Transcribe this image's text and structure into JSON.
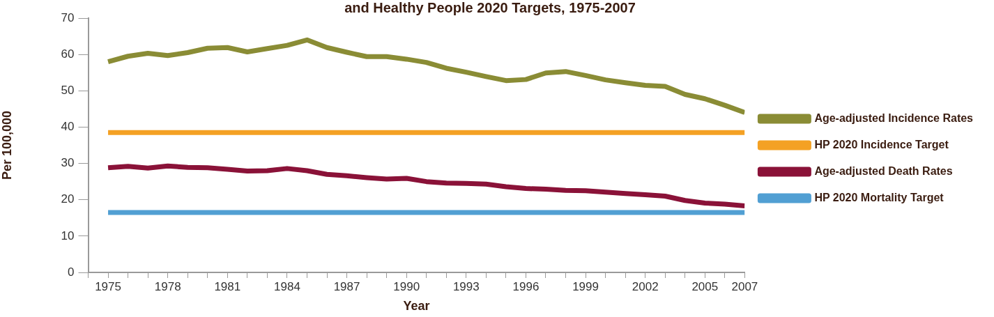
{
  "chart_data": {
    "type": "line",
    "title": "and Healthy People 2020 Targets, 1975-2007",
    "xlabel": "Year",
    "ylabel": "Per 100,000",
    "x": [
      1975,
      1976,
      1977,
      1978,
      1979,
      1980,
      1981,
      1982,
      1983,
      1984,
      1985,
      1986,
      1987,
      1988,
      1989,
      1990,
      1991,
      1992,
      1993,
      1994,
      1995,
      1996,
      1997,
      1998,
      1999,
      2000,
      2001,
      2002,
      2003,
      2004,
      2005,
      2006,
      2007
    ],
    "series": [
      {
        "name": "Age-adjusted Incidence Rates",
        "color": "#8a8c35",
        "values": [
          58,
          59.5,
          60.3,
          59.7,
          60.5,
          61.7,
          61.9,
          60.7,
          61.6,
          62.5,
          64,
          61.9,
          60.6,
          59.4,
          59.4,
          58.7,
          57.8,
          56.2,
          55.1,
          53.9,
          52.8,
          53.1,
          54.9,
          55.3,
          54.2,
          53,
          52.2,
          51.5,
          51.2,
          49,
          47.8,
          46,
          44
        ]
      },
      {
        "name": "HP 2020 Incidence Target",
        "color": "#f4a124",
        "values": [
          38.5,
          38.5,
          38.5,
          38.5,
          38.5,
          38.5,
          38.5,
          38.5,
          38.5,
          38.5,
          38.5,
          38.5,
          38.5,
          38.5,
          38.5,
          38.5,
          38.5,
          38.5,
          38.5,
          38.5,
          38.5,
          38.5,
          38.5,
          38.5,
          38.5,
          38.5,
          38.5,
          38.5,
          38.5,
          38.5,
          38.5,
          38.5,
          38.5
        ]
      },
      {
        "name": "Age-adjusted Death Rates",
        "color": "#8a1238",
        "values": [
          28.8,
          29.2,
          28.7,
          29.3,
          28.9,
          28.8,
          28.4,
          27.9,
          28,
          28.6,
          28,
          27,
          26.6,
          26.1,
          25.7,
          25.9,
          25,
          24.6,
          24.5,
          24.3,
          23.6,
          23.1,
          22.9,
          22.6,
          22.5,
          22.1,
          21.7,
          21.4,
          21,
          19.8,
          19.1,
          18.8,
          18.3
        ]
      },
      {
        "name": "HP 2020 Mortality Target",
        "color": "#519fd3",
        "values": [
          16.5,
          16.5,
          16.5,
          16.5,
          16.5,
          16.5,
          16.5,
          16.5,
          16.5,
          16.5,
          16.5,
          16.5,
          16.5,
          16.5,
          16.5,
          16.5,
          16.5,
          16.5,
          16.5,
          16.5,
          16.5,
          16.5,
          16.5,
          16.5,
          16.5,
          16.5,
          16.5,
          16.5,
          16.5,
          16.5,
          16.5,
          16.5,
          16.5
        ]
      }
    ],
    "xlim": [
      1974,
      2007
    ],
    "xticks": [
      {
        "value": 1974,
        "label": null
      },
      1975,
      {
        "value": 1976,
        "label": null
      },
      {
        "value": 1977,
        "label": null
      },
      1978,
      {
        "value": 1979,
        "label": null
      },
      {
        "value": 1980,
        "label": null
      },
      1981,
      {
        "value": 1982,
        "label": null
      },
      {
        "value": 1983,
        "label": null
      },
      1984,
      {
        "value": 1985,
        "label": null
      },
      {
        "value": 1986,
        "label": null
      },
      1987,
      {
        "value": 1988,
        "label": null
      },
      {
        "value": 1989,
        "label": null
      },
      1990,
      {
        "value": 1991,
        "label": null
      },
      {
        "value": 1992,
        "label": null
      },
      1993,
      {
        "value": 1994,
        "label": null
      },
      {
        "value": 1995,
        "label": null
      },
      1996,
      {
        "value": 1997,
        "label": null
      },
      {
        "value": 1998,
        "label": null
      },
      1999,
      {
        "value": 2000,
        "label": null
      },
      {
        "value": 2001,
        "label": null
      },
      2002,
      {
        "value": 2003,
        "label": null
      },
      {
        "value": 2004,
        "label": null
      },
      2005,
      {
        "value": 2006,
        "label": null
      },
      2007
    ],
    "ylim": [
      0,
      70
    ],
    "yticks": [
      0,
      10,
      20,
      30,
      40,
      50,
      60,
      70
    ],
    "grid": false,
    "legend": "right",
    "marker": "none",
    "line_style": "solid"
  }
}
